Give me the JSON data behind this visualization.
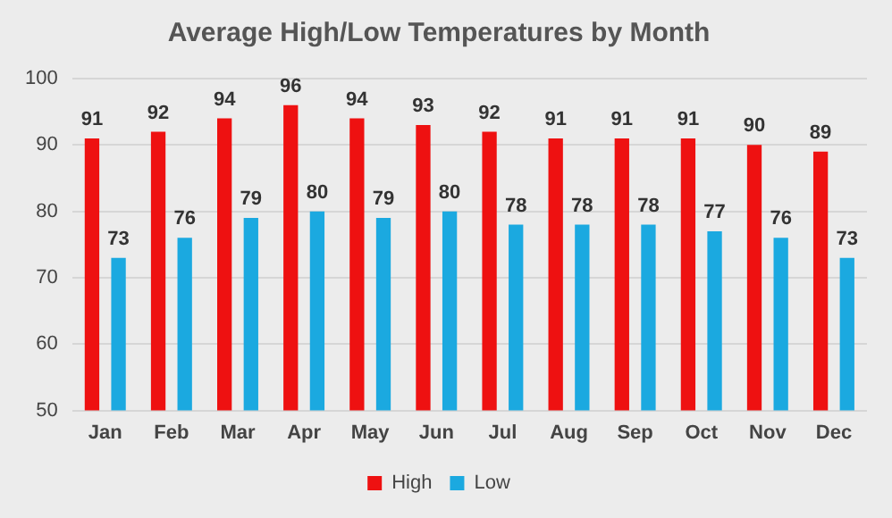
{
  "chart_data": {
    "type": "bar",
    "title": "Average High/Low Temperatures by Month",
    "categories": [
      "Jan",
      "Feb",
      "Mar",
      "Apr",
      "May",
      "Jun",
      "Jul",
      "Aug",
      "Sep",
      "Oct",
      "Nov",
      "Dec"
    ],
    "series": [
      {
        "name": "High",
        "color": "#ee1111",
        "values": [
          91,
          92,
          94,
          96,
          94,
          93,
          92,
          91,
          91,
          91,
          90,
          89
        ]
      },
      {
        "name": "Low",
        "color": "#1ba9e0",
        "values": [
          73,
          76,
          79,
          80,
          79,
          80,
          78,
          78,
          78,
          77,
          76,
          73
        ]
      }
    ],
    "ylim": [
      50,
      100
    ],
    "yticks": [
      50,
      60,
      70,
      80,
      90,
      100
    ],
    "grid": "y",
    "legend": "bottom",
    "data_labels": true
  }
}
